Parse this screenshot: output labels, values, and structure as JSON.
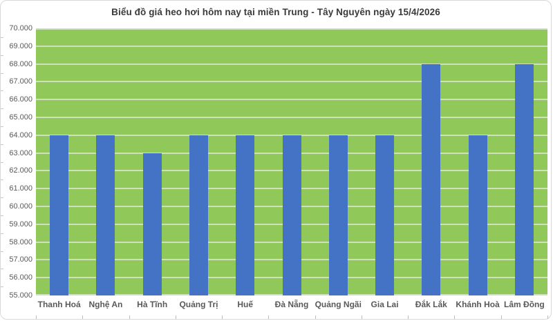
{
  "chart_data": {
    "type": "bar",
    "title": "Biểu đồ giá heo hơi hôm nay tại miền Trung - Tây Nguyên ngày 15/4/2026",
    "categories": [
      "Thanh Hoá",
      "Nghệ An",
      "Hà Tĩnh",
      "Quảng Trị",
      "Huế",
      "Đà Nẵng",
      "Quảng Ngãi",
      "Gia Lai",
      "Đắk Lắk",
      "Khánh Hoà",
      "Lâm Đồng"
    ],
    "values": [
      64000,
      64000,
      63000,
      64000,
      64000,
      64000,
      64000,
      64000,
      68000,
      64000,
      68000
    ],
    "xlabel": "",
    "ylabel": "",
    "ylim": [
      55000,
      70000
    ],
    "ytick_step": 1000,
    "ytick_labels": [
      "70.000",
      "69.000",
      "68.000",
      "67.000",
      "66.000",
      "65.000",
      "64.000",
      "63.000",
      "62.000",
      "61.000",
      "60.000",
      "59.000",
      "58.000",
      "57.000",
      "56.000",
      "55.000"
    ],
    "grid": "horizontal",
    "legend": "none",
    "colors": {
      "bar": "#4472c4",
      "plot_background": "#91c85a",
      "gridline": "#cfe0bd",
      "title_text": "#3a3a3a",
      "axis_text": "#595959",
      "chart_border": "#d8d8d8"
    }
  }
}
